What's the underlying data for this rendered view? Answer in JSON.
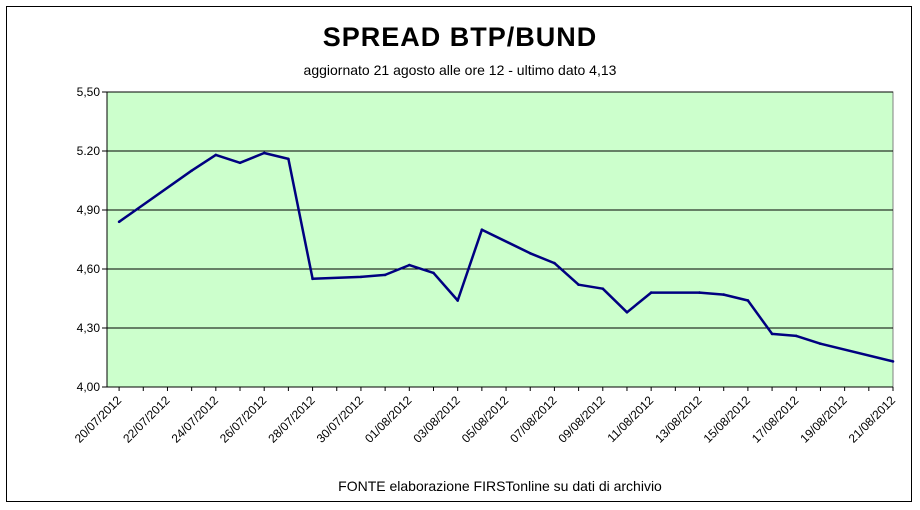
{
  "chart_data": {
    "type": "line",
    "title": "SPREAD  BTP/BUND",
    "subtitle": "aggiornato 21 agosto alle ore 12  -  ultimo dato 4,13",
    "source": "FONTE elaborazione FIRSTonline su dati di archivio",
    "xlabel": "",
    "ylabel": "",
    "ylim": [
      4.0,
      5.5
    ],
    "grid": true,
    "legend": "none",
    "plot_background": "#ccffcc",
    "line_color": "#000080",
    "yticks": [
      "4,00",
      "4,30",
      "4,60",
      "4,90",
      "5.20",
      "5,50"
    ],
    "xticks": [
      "20/07/2012",
      "22/07/2012",
      "24/07/2012",
      "26/07/2012",
      "28/07/2012",
      "30/07/2012",
      "01/08/2012",
      "03/08/2012",
      "05/08/2012",
      "07/08/2012",
      "09/08/2012",
      "11/08/2012",
      "13/08/2012",
      "15/08/2012",
      "17/08/2012",
      "19/08/2012",
      "21/08/2012"
    ],
    "series": [
      {
        "x": [
          "2012-07-20",
          "2012-07-23",
          "2012-07-24",
          "2012-07-25",
          "2012-07-26",
          "2012-07-27",
          "2012-07-28",
          "2012-07-30",
          "2012-07-31",
          "2012-08-01",
          "2012-08-02",
          "2012-08-03",
          "2012-08-04",
          "2012-08-06",
          "2012-08-07",
          "2012-08-08",
          "2012-08-09",
          "2012-08-10",
          "2012-08-11",
          "2012-08-13",
          "2012-08-14",
          "2012-08-15",
          "2012-08-16",
          "2012-08-17",
          "2012-08-18",
          "2012-08-21"
        ],
        "values": [
          4.84,
          5.1,
          5.18,
          5.14,
          5.19,
          5.16,
          4.55,
          4.56,
          4.57,
          4.62,
          4.58,
          4.44,
          4.8,
          4.68,
          4.63,
          4.52,
          4.5,
          4.38,
          4.48,
          4.48,
          4.47,
          4.44,
          4.27,
          4.26,
          4.22,
          4.13
        ]
      }
    ]
  }
}
